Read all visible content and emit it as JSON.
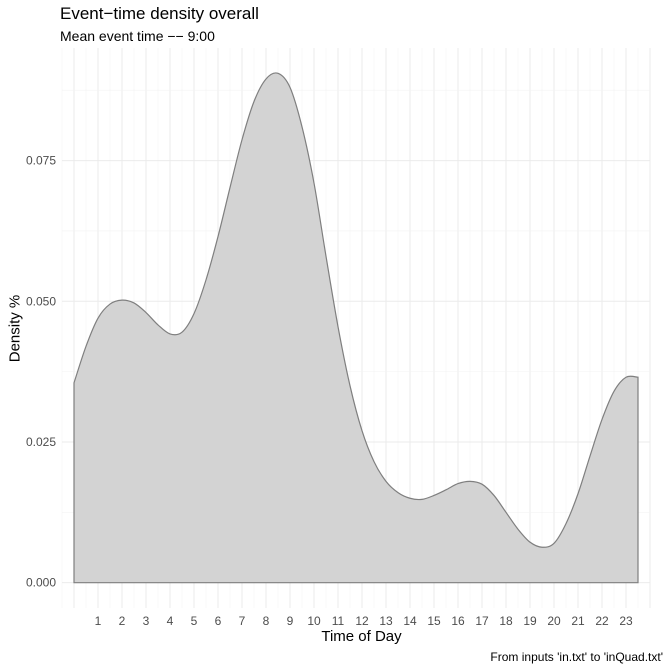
{
  "chart_data": {
    "type": "area",
    "title": "Event−time density overall",
    "subtitle": "Mean event time −− 9:00",
    "caption": "From inputs 'in.txt' to 'inQuad.txt'",
    "xlabel": "Time of Day",
    "ylabel": "Density %",
    "xlim": [
      -0.5,
      24
    ],
    "ylim": [
      -0.0045,
      0.095
    ],
    "x_ticks": [
      1,
      2,
      3,
      4,
      5,
      6,
      7,
      8,
      9,
      10,
      11,
      12,
      13,
      14,
      15,
      16,
      17,
      18,
      19,
      20,
      21,
      22,
      23
    ],
    "y_ticks": [
      0.0,
      0.025,
      0.05,
      0.075
    ],
    "y_tick_labels": [
      "0.000",
      "0.025",
      "0.050",
      "0.075"
    ],
    "grid": true,
    "fill_color": "#d3d3d3",
    "line_color": "#7f7f7f",
    "x": [
      0.0,
      0.5,
      1.0,
      1.5,
      2.0,
      2.5,
      3.0,
      3.5,
      4.0,
      4.5,
      5.0,
      5.5,
      6.0,
      6.5,
      7.0,
      7.5,
      8.0,
      8.5,
      9.0,
      9.5,
      10.0,
      10.5,
      11.0,
      11.5,
      12.0,
      12.5,
      13.0,
      13.5,
      14.0,
      14.5,
      15.0,
      15.5,
      16.0,
      16.5,
      17.0,
      17.5,
      18.0,
      18.5,
      19.0,
      19.5,
      20.0,
      20.5,
      21.0,
      21.5,
      22.0,
      22.5,
      23.0,
      23.5
    ],
    "y": [
      0.0355,
      0.042,
      0.047,
      0.0495,
      0.0502,
      0.0497,
      0.048,
      0.0458,
      0.0442,
      0.0445,
      0.0478,
      0.0538,
      0.0615,
      0.0702,
      0.0787,
      0.0855,
      0.0895,
      0.0905,
      0.088,
      0.081,
      0.071,
      0.058,
      0.0455,
      0.035,
      0.027,
      0.0215,
      0.018,
      0.016,
      0.015,
      0.0148,
      0.0155,
      0.0165,
      0.0176,
      0.018,
      0.0175,
      0.0155,
      0.0125,
      0.0095,
      0.0072,
      0.0063,
      0.007,
      0.0105,
      0.0158,
      0.0225,
      0.029,
      0.034,
      0.0365,
      0.0365
    ]
  }
}
